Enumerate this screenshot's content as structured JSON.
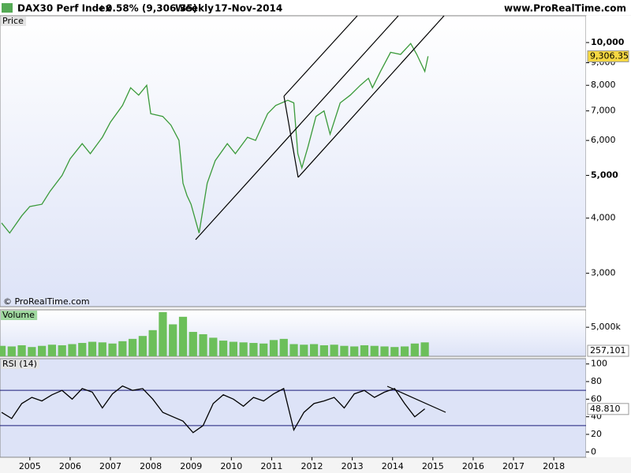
{
  "header": {
    "title": "DAX30 Perf Index",
    "change": "+0.58% (9,306.35)",
    "period": "Weekly",
    "date": "17-Nov-2014",
    "site": "www.ProRealTime.com",
    "watermark": "© ProRealTime.com"
  },
  "chart_data": [
    {
      "type": "line",
      "title": "Price",
      "log_scale": true,
      "color": "#3a9a3a",
      "x": [
        2004.3,
        2004.5,
        2004.8,
        2005.0,
        2005.3,
        2005.5,
        2005.8,
        2006.0,
        2006.3,
        2006.5,
        2006.8,
        2007.0,
        2007.3,
        2007.5,
        2007.7,
        2007.9,
        2008.0,
        2008.3,
        2008.5,
        2008.7,
        2008.8,
        2008.9,
        2009.0,
        2009.2,
        2009.4,
        2009.6,
        2009.9,
        2010.1,
        2010.4,
        2010.6,
        2010.9,
        2011.1,
        2011.4,
        2011.55,
        2011.65,
        2011.75,
        2011.9,
        2012.1,
        2012.3,
        2012.45,
        2012.7,
        2012.95,
        2013.2,
        2013.4,
        2013.5,
        2013.7,
        2013.95,
        2014.2,
        2014.45,
        2014.6,
        2014.8,
        2014.88
      ],
      "values": [
        3900,
        3700,
        4050,
        4250,
        4300,
        4600,
        5000,
        5450,
        5900,
        5600,
        6100,
        6600,
        7200,
        7900,
        7600,
        8000,
        6900,
        6800,
        6500,
        6000,
        4800,
        4500,
        4300,
        3700,
        4800,
        5400,
        5900,
        5600,
        6100,
        6000,
        6900,
        7200,
        7400,
        7300,
        5600,
        5200,
        5800,
        6800,
        7000,
        6200,
        7300,
        7600,
        8000,
        8300,
        7900,
        8600,
        9500,
        9400,
        9950,
        9400,
        8600,
        9306.35
      ],
      "last": {
        "value": 9306.35,
        "label": "9,306.35"
      },
      "xlim": [
        2004.26,
        2018.8
      ],
      "ylim": [
        2520,
        11500
      ],
      "yticks": [
        {
          "value": 3000,
          "label": "3,000"
        },
        {
          "value": 4000,
          "label": "4,000"
        },
        {
          "value": 5000,
          "label": "5,000"
        },
        {
          "value": 6000,
          "label": "6,000"
        },
        {
          "value": 7000,
          "label": "7,000"
        },
        {
          "value": 8000,
          "label": "8,000"
        },
        {
          "value": 9000,
          "label": "9,000"
        },
        {
          "value": 10000,
          "label": "10,000"
        }
      ]
    },
    {
      "type": "bar",
      "title": "Volume",
      "color": "#6cbf5a",
      "x": [
        2004.3,
        2004.55,
        2004.8,
        2005.05,
        2005.3,
        2005.55,
        2005.8,
        2006.05,
        2006.3,
        2006.55,
        2006.8,
        2007.05,
        2007.3,
        2007.55,
        2007.8,
        2008.05,
        2008.3,
        2008.55,
        2008.8,
        2009.05,
        2009.3,
        2009.55,
        2009.8,
        2010.05,
        2010.3,
        2010.55,
        2010.8,
        2011.05,
        2011.3,
        2011.55,
        2011.8,
        2012.05,
        2012.3,
        2012.55,
        2012.8,
        2013.05,
        2013.3,
        2013.55,
        2013.8,
        2014.05,
        2014.3,
        2014.55,
        2014.8
      ],
      "values": [
        1800000,
        1700000,
        1900000,
        1600000,
        1800000,
        2000000,
        1900000,
        2100000,
        2300000,
        2500000,
        2400000,
        2200000,
        2600000,
        3000000,
        3500000,
        4500000,
        7600000,
        5500000,
        6800000,
        4200000,
        3800000,
        3200000,
        2700000,
        2500000,
        2400000,
        2300000,
        2200000,
        2800000,
        3000000,
        2100000,
        2000000,
        2100000,
        1900000,
        2000000,
        1800000,
        1700000,
        1900000,
        1800000,
        1700000,
        1600000,
        1700000,
        2200000,
        2400000
      ],
      "last": {
        "value": 257101,
        "label": "257,101"
      },
      "xlim": [
        2004.26,
        2018.8
      ],
      "ylim": [
        0,
        8000000
      ],
      "yticks": [
        {
          "value": 5000000,
          "label": "5,000k"
        }
      ]
    },
    {
      "type": "line",
      "title": "RSI (14)",
      "color": "#000000",
      "x": [
        2004.3,
        2004.55,
        2004.8,
        2005.05,
        2005.3,
        2005.55,
        2005.8,
        2006.05,
        2006.3,
        2006.55,
        2006.8,
        2007.05,
        2007.3,
        2007.55,
        2007.8,
        2008.05,
        2008.3,
        2008.55,
        2008.8,
        2009.05,
        2009.3,
        2009.55,
        2009.8,
        2010.05,
        2010.3,
        2010.55,
        2010.8,
        2011.05,
        2011.3,
        2011.55,
        2011.8,
        2012.05,
        2012.3,
        2012.55,
        2012.8,
        2013.05,
        2013.3,
        2013.55,
        2013.8,
        2014.05,
        2014.3,
        2014.55,
        2014.8
      ],
      "values": [
        45,
        38,
        55,
        62,
        58,
        65,
        70,
        60,
        72,
        68,
        50,
        66,
        75,
        70,
        72,
        60,
        45,
        40,
        35,
        22,
        30,
        55,
        65,
        60,
        52,
        62,
        58,
        66,
        72,
        25,
        45,
        55,
        58,
        62,
        50,
        66,
        70,
        62,
        68,
        72,
        55,
        40,
        49
      ],
      "last": {
        "value": 48.81,
        "label": "48.810"
      },
      "levels": [
        30,
        70
      ],
      "xlim": [
        2004.26,
        2018.8
      ],
      "ylim": [
        -6,
        106
      ],
      "yticks": [
        0,
        20,
        40,
        60,
        80,
        100
      ],
      "xticks": [
        2005,
        2006,
        2007,
        2008,
        2009,
        2010,
        2011,
        2012,
        2013,
        2014,
        2015,
        2016,
        2017,
        2018
      ]
    }
  ]
}
